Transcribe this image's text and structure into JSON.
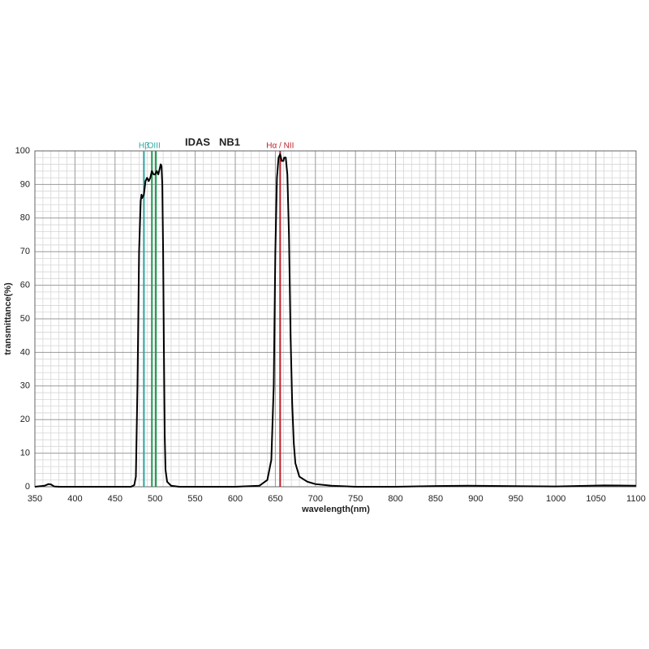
{
  "chart_data": {
    "type": "line",
    "title": "IDAS   NB1",
    "x_label": "wavelength(nm)",
    "y_label": "transmittance(%)",
    "xlim": [
      350,
      1100
    ],
    "ylim": [
      0,
      100
    ],
    "xticks": [
      350,
      400,
      450,
      500,
      550,
      600,
      650,
      700,
      750,
      800,
      850,
      900,
      950,
      1000,
      1050,
      1100
    ],
    "yticks": [
      0,
      10,
      20,
      30,
      40,
      50,
      60,
      70,
      80,
      90,
      100
    ],
    "grid": true,
    "minor_grid": true,
    "annotations": [
      {
        "label": "Hβ",
        "x": [
          486
        ],
        "color": "#2aa6a0",
        "text_color": "#2aa6a0"
      },
      {
        "label": "OIII",
        "x": [
          496,
          501
        ],
        "color": "#1e9a50",
        "text_color": "#2aa6a0"
      },
      {
        "label": "Hα / NII",
        "x": [
          656
        ],
        "color": "#c0202a",
        "text_color": "#c0202a"
      }
    ],
    "series": [
      {
        "name": "IDAS NB1",
        "color": "#000000",
        "x": [
          350,
          362,
          367,
          370,
          374,
          380,
          400,
          450,
          470,
          474,
          476,
          478,
          480,
          482,
          483,
          484,
          486,
          488,
          490,
          492,
          494,
          496,
          498,
          500,
          502,
          504,
          506,
          507,
          508,
          509,
          510,
          511,
          512,
          513,
          515,
          520,
          530,
          550,
          600,
          630,
          640,
          645,
          648,
          650,
          652,
          654,
          656,
          658,
          660,
          661,
          663,
          665,
          667,
          669,
          671,
          673,
          675,
          680,
          690,
          700,
          720,
          750,
          800,
          850,
          890,
          1000,
          1060,
          1100
        ],
        "values": [
          0,
          0.3,
          0.8,
          0.7,
          0.1,
          0,
          0,
          0,
          0,
          0.5,
          3,
          30,
          70,
          85,
          87,
          86,
          87,
          91,
          92,
          91,
          92,
          94,
          93,
          93,
          94,
          93,
          95,
          96,
          95.5,
          90,
          70,
          40,
          15,
          5,
          1.5,
          0.3,
          0,
          0,
          0,
          0.3,
          2,
          8,
          30,
          70,
          92,
          98,
          99,
          97,
          97,
          98,
          98,
          93,
          75,
          45,
          25,
          13,
          7,
          3,
          1.5,
          0.8,
          0.3,
          0,
          0,
          0.2,
          0.3,
          0.1,
          0.4,
          0.3
        ]
      }
    ]
  }
}
